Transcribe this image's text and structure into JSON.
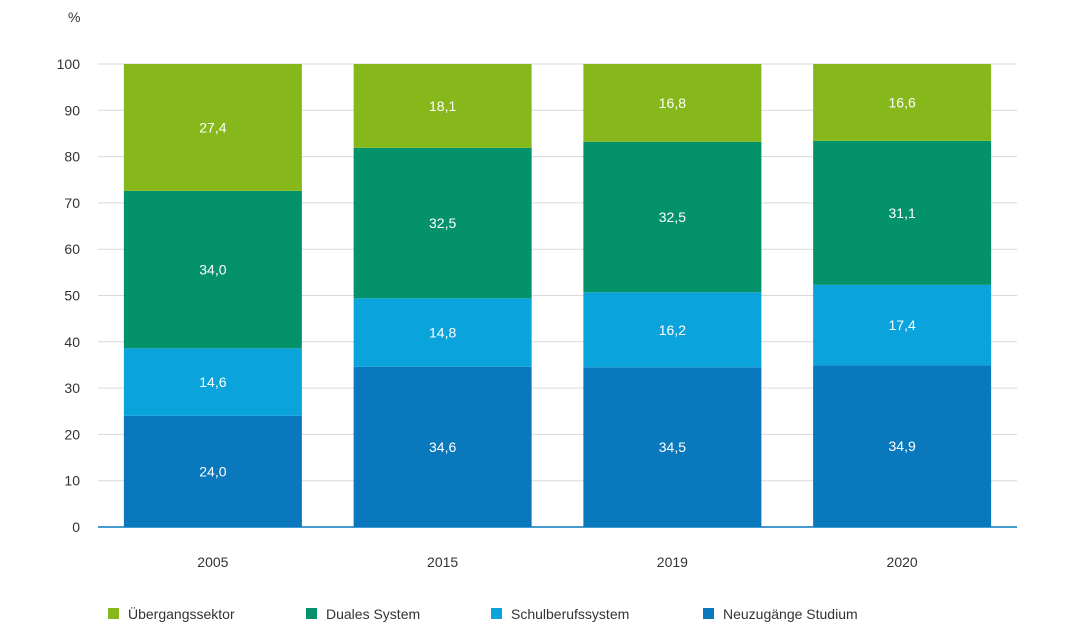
{
  "chart_data": {
    "type": "bar",
    "stacked": true,
    "title": "",
    "xlabel": "",
    "ylabel": "%",
    "ylim": [
      0,
      100
    ],
    "yticks": [
      0,
      10,
      20,
      30,
      40,
      50,
      60,
      70,
      80,
      90,
      100
    ],
    "grid": true,
    "legend_position": "bottom",
    "categories": [
      "2005",
      "2015",
      "2019",
      "2020"
    ],
    "series": [
      {
        "name": "Neuzugänge Studium",
        "color": "#0a78bd",
        "values": [
          24.0,
          34.6,
          34.5,
          34.9
        ],
        "labels": [
          "24,0",
          "34,6",
          "34,5",
          "34,9"
        ]
      },
      {
        "name": "Schulberufssystem",
        "color": "#0aa3dc",
        "values": [
          14.6,
          14.8,
          16.2,
          17.4
        ],
        "labels": [
          "14,6",
          "14,8",
          "16,2",
          "17,4"
        ]
      },
      {
        "name": "Duales System",
        "color": "#04926a",
        "values": [
          34.0,
          32.5,
          32.5,
          31.1
        ],
        "labels": [
          "34,0",
          "32,5",
          "32,5",
          "31,1"
        ]
      },
      {
        "name": "Übergangssektor",
        "color": "#87b81b",
        "values": [
          27.4,
          18.1,
          16.8,
          16.6
        ],
        "labels": [
          "27,4",
          "18,1",
          "16,8",
          "16,6"
        ]
      }
    ],
    "legend_order": [
      "Übergangssektor",
      "Duales System",
      "Schulberufssystem",
      "Neuzugänge Studium"
    ]
  }
}
